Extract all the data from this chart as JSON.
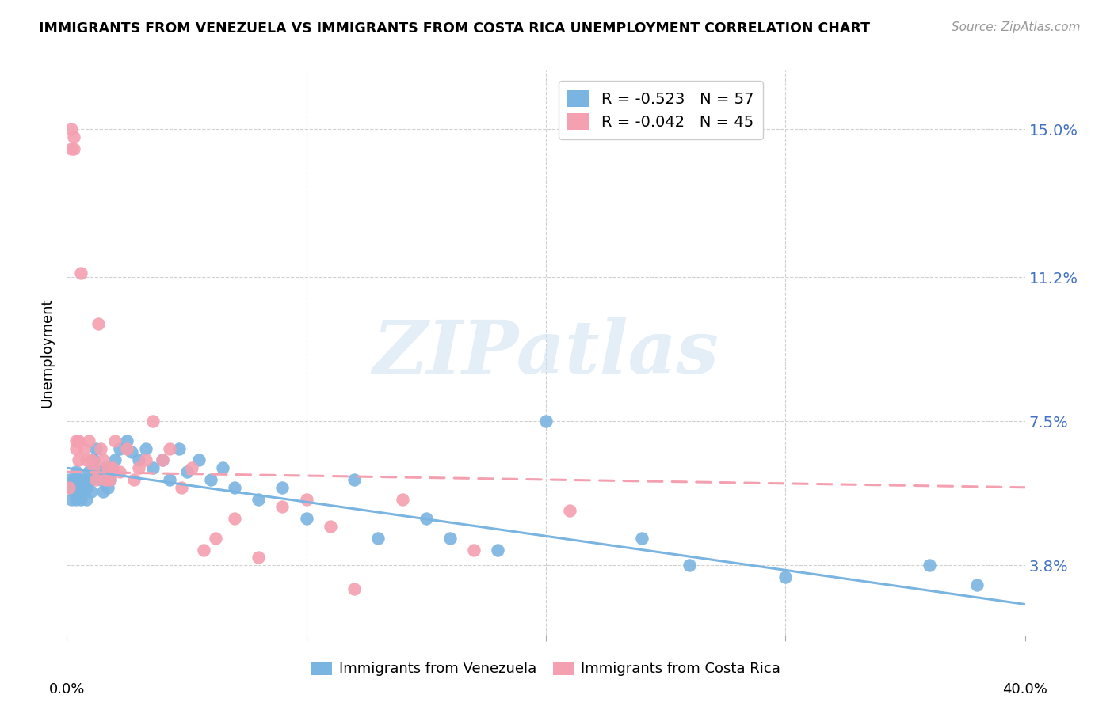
{
  "title": "IMMIGRANTS FROM VENEZUELA VS IMMIGRANTS FROM COSTA RICA UNEMPLOYMENT CORRELATION CHART",
  "source": "Source: ZipAtlas.com",
  "ylabel": "Unemployment",
  "ytick_vals": [
    0.038,
    0.075,
    0.112,
    0.15
  ],
  "ytick_labels": [
    "3.8%",
    "7.5%",
    "11.2%",
    "15.0%"
  ],
  "xtick_labels": [
    "0.0%",
    "40.0%"
  ],
  "xlim": [
    0.0,
    0.4
  ],
  "ylim": [
    0.02,
    0.165
  ],
  "color_venezuela": "#7ab4e0",
  "color_costa_rica": "#f4a0b0",
  "legend_line1": "R = -0.523   N = 57",
  "legend_line2": "R = -0.042   N = 45",
  "watermark": "ZIPatlas",
  "bottom_label_venezuela": "Immigrants from Venezuela",
  "bottom_label_costa_rica": "Immigrants from Costa Rica",
  "venezuela_x": [
    0.001,
    0.002,
    0.002,
    0.003,
    0.003,
    0.004,
    0.004,
    0.005,
    0.005,
    0.006,
    0.006,
    0.007,
    0.007,
    0.008,
    0.008,
    0.009,
    0.009,
    0.01,
    0.01,
    0.011,
    0.012,
    0.013,
    0.014,
    0.015,
    0.016,
    0.017,
    0.018,
    0.019,
    0.02,
    0.022,
    0.025,
    0.027,
    0.03,
    0.033,
    0.036,
    0.04,
    0.043,
    0.047,
    0.05,
    0.055,
    0.06,
    0.065,
    0.07,
    0.08,
    0.09,
    0.1,
    0.12,
    0.13,
    0.15,
    0.16,
    0.18,
    0.2,
    0.24,
    0.26,
    0.3,
    0.36,
    0.38
  ],
  "venezuela_y": [
    0.06,
    0.055,
    0.058,
    0.057,
    0.06,
    0.055,
    0.062,
    0.058,
    0.06,
    0.055,
    0.058,
    0.06,
    0.057,
    0.058,
    0.055,
    0.06,
    0.062,
    0.06,
    0.057,
    0.065,
    0.068,
    0.062,
    0.06,
    0.057,
    0.063,
    0.058,
    0.06,
    0.062,
    0.065,
    0.068,
    0.07,
    0.067,
    0.065,
    0.068,
    0.063,
    0.065,
    0.06,
    0.068,
    0.062,
    0.065,
    0.06,
    0.063,
    0.058,
    0.055,
    0.058,
    0.05,
    0.06,
    0.045,
    0.05,
    0.045,
    0.042,
    0.075,
    0.045,
    0.038,
    0.035,
    0.038,
    0.033
  ],
  "costa_rica_x": [
    0.001,
    0.002,
    0.002,
    0.003,
    0.003,
    0.004,
    0.004,
    0.005,
    0.005,
    0.006,
    0.007,
    0.008,
    0.009,
    0.01,
    0.011,
    0.012,
    0.013,
    0.014,
    0.015,
    0.016,
    0.017,
    0.018,
    0.019,
    0.02,
    0.022,
    0.025,
    0.028,
    0.03,
    0.033,
    0.036,
    0.04,
    0.043,
    0.048,
    0.052,
    0.057,
    0.062,
    0.07,
    0.08,
    0.09,
    0.1,
    0.11,
    0.12,
    0.14,
    0.17,
    0.21
  ],
  "costa_rica_y": [
    0.058,
    0.145,
    0.15,
    0.148,
    0.145,
    0.07,
    0.068,
    0.065,
    0.07,
    0.113,
    0.068,
    0.065,
    0.07,
    0.065,
    0.063,
    0.06,
    0.1,
    0.068,
    0.065,
    0.06,
    0.063,
    0.06,
    0.063,
    0.07,
    0.062,
    0.068,
    0.06,
    0.063,
    0.065,
    0.075,
    0.065,
    0.068,
    0.058,
    0.063,
    0.042,
    0.045,
    0.05,
    0.04,
    0.053,
    0.055,
    0.048,
    0.032,
    0.055,
    0.042,
    0.052
  ],
  "ven_trend_x": [
    0.0,
    0.4
  ],
  "ven_trend_y": [
    0.063,
    0.028
  ],
  "cr_trend_x": [
    0.0,
    0.4
  ],
  "cr_trend_y": [
    0.062,
    0.058
  ]
}
